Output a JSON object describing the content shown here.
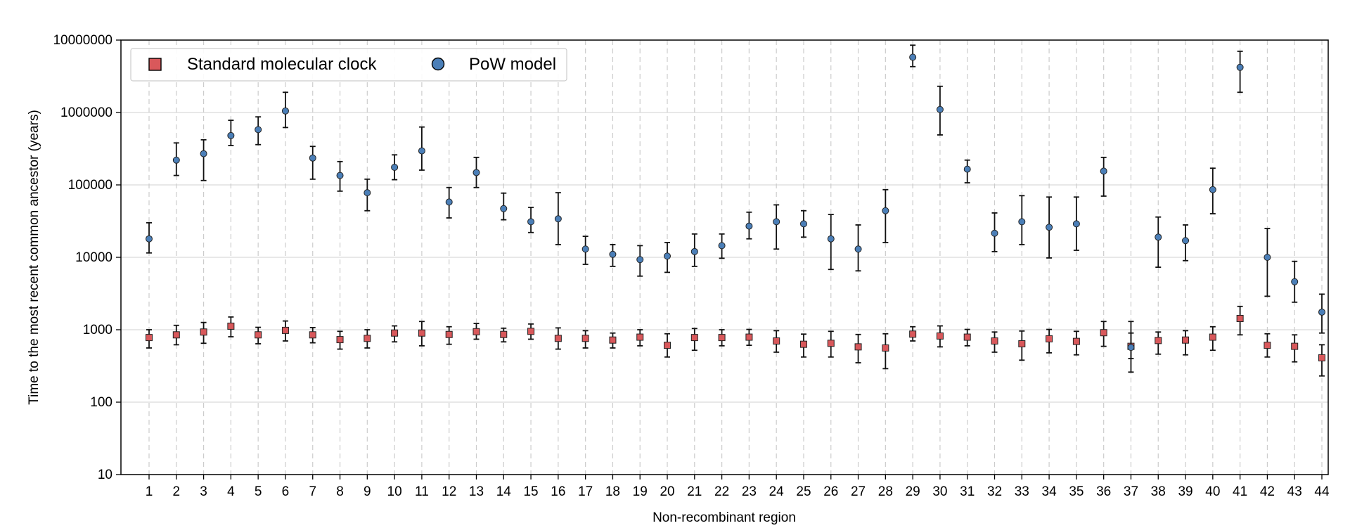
{
  "chart_data": {
    "type": "scatter",
    "scale": "log",
    "xlabel": "Non-recombinant region",
    "ylabel": "Time to the most recent common ancestor (years)",
    "ylim": [
      10,
      10000000
    ],
    "y_tick_labels": [
      "10",
      "100",
      "1000",
      "10000",
      "100000",
      "1000000",
      "10000000"
    ],
    "categories": [
      "1",
      "2",
      "3",
      "4",
      "5",
      "6",
      "7",
      "8",
      "9",
      "10",
      "11",
      "12",
      "13",
      "14",
      "15",
      "16",
      "17",
      "18",
      "19",
      "20",
      "21",
      "22",
      "23",
      "24",
      "25",
      "26",
      "27",
      "28",
      "29",
      "30",
      "31",
      "32",
      "33",
      "34",
      "35",
      "36",
      "37",
      "38",
      "39",
      "40",
      "41",
      "42",
      "43",
      "44"
    ],
    "grid": true,
    "legend_position": "top-left",
    "series": [
      {
        "name": "Standard molecular clock",
        "marker": "square",
        "color": "#d9585b",
        "values": [
          780,
          850,
          930,
          1120,
          850,
          980,
          850,
          730,
          760,
          900,
          900,
          860,
          940,
          860,
          950,
          760,
          760,
          720,
          790,
          610,
          780,
          780,
          790,
          700,
          630,
          650,
          580,
          560,
          870,
          820,
          790,
          700,
          640,
          750,
          690,
          910,
          590,
          710,
          720,
          790,
          1430,
          610,
          590,
          410
        ],
        "lower": [
          560,
          620,
          650,
          800,
          640,
          700,
          660,
          540,
          560,
          680,
          600,
          630,
          740,
          680,
          740,
          540,
          560,
          560,
          600,
          420,
          520,
          600,
          610,
          490,
          420,
          420,
          350,
          290,
          700,
          580,
          600,
          490,
          380,
          480,
          450,
          590,
          260,
          460,
          450,
          520,
          850,
          420,
          360,
          230
        ],
        "upper": [
          1000,
          1150,
          1260,
          1500,
          1080,
          1320,
          1070,
          950,
          1000,
          1130,
          1300,
          1100,
          1220,
          1050,
          1200,
          1060,
          970,
          900,
          1000,
          880,
          1040,
          1000,
          1010,
          970,
          870,
          950,
          860,
          880,
          1100,
          1130,
          1010,
          930,
          960,
          1010,
          950,
          1300,
          1300,
          930,
          970,
          1100,
          2100,
          880,
          850,
          620
        ]
      },
      {
        "name": "PoW model",
        "marker": "circle",
        "color": "#4b7fb8",
        "values": [
          18000,
          220000,
          270000,
          480000,
          580000,
          1050000,
          235000,
          135000,
          78000,
          175000,
          295000,
          58000,
          148000,
          47000,
          31000,
          34000,
          13000,
          11000,
          9300,
          10400,
          12000,
          14500,
          27000,
          31000,
          29000,
          18000,
          13000,
          44000,
          5800000,
          1100000,
          165000,
          21500,
          31000,
          26000,
          29000,
          155000,
          570,
          19000,
          17000,
          86000,
          4200000,
          10000,
          4600,
          1750
        ],
        "lower": [
          11500,
          135000,
          115000,
          350000,
          360000,
          620000,
          120000,
          82000,
          44000,
          118000,
          160000,
          35000,
          92000,
          33000,
          22000,
          15000,
          8000,
          7500,
          5500,
          6200,
          7500,
          9700,
          18000,
          13000,
          19000,
          6800,
          6500,
          16000,
          4300000,
          490000,
          107000,
          12000,
          15000,
          9800,
          12500,
          70000,
          400,
          7300,
          9000,
          40000,
          1900000,
          2900,
          2400,
          900
        ],
        "upper": [
          30000,
          380000,
          420000,
          780000,
          870000,
          1900000,
          340000,
          210000,
          120000,
          260000,
          630000,
          92000,
          240000,
          77000,
          49000,
          78000,
          19500,
          15000,
          14500,
          16000,
          21000,
          21000,
          42000,
          53000,
          44000,
          39000,
          28000,
          86000,
          8500000,
          2300000,
          220000,
          41000,
          71000,
          68000,
          68000,
          240000,
          900,
          36000,
          28000,
          170000,
          7000000,
          25000,
          8800,
          3100
        ]
      }
    ]
  }
}
